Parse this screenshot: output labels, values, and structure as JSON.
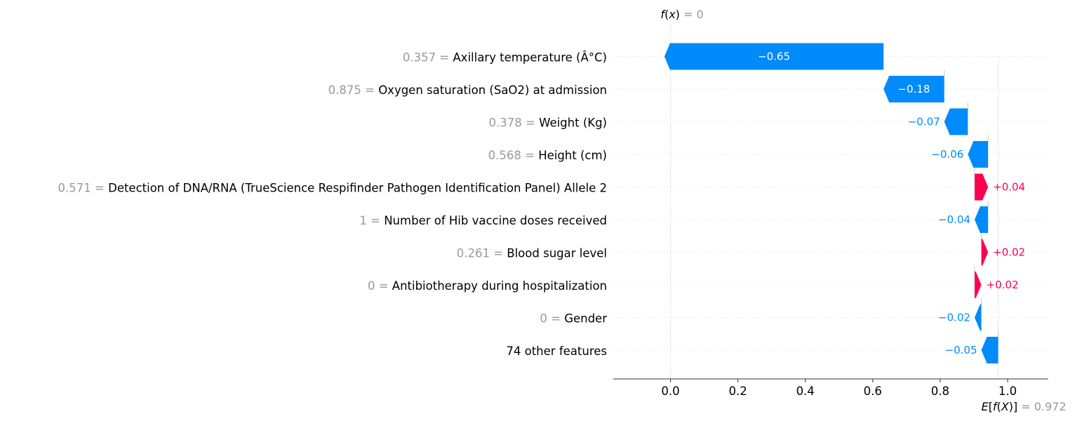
{
  "chart_data": {
    "type": "waterfall",
    "fx_label": "f(x)",
    "fx_value": "0",
    "base_label": "E[f(X)]",
    "base_value": "0.972",
    "base": 0.972,
    "final": 0,
    "xlim": [
      -0.17,
      1.12
    ],
    "xticks": [
      0.0,
      0.2,
      0.4,
      0.6,
      0.8,
      1.0
    ],
    "xtick_labels": [
      "0.0",
      "0.2",
      "0.4",
      "0.6",
      "0.8",
      "1.0"
    ],
    "features": [
      {
        "value": "0.357",
        "name": "Axillary temperature (Â°C)",
        "contribution": -0.65,
        "label": "−0.65"
      },
      {
        "value": "0.875",
        "name": "Oxygen saturation (SaO2) at admission",
        "contribution": -0.18,
        "label": "−0.18"
      },
      {
        "value": "0.378",
        "name": "Weight (Kg)",
        "contribution": -0.07,
        "label": "−0.07"
      },
      {
        "value": "0.568",
        "name": "Height (cm)",
        "contribution": -0.06,
        "label": "−0.06"
      },
      {
        "value": "0.571",
        "name": "Detection of DNA/RNA (TrueScience Respifinder Pathogen Identification Panel) Allele 2",
        "contribution": 0.04,
        "label": "+0.04"
      },
      {
        "value": "1",
        "name": "Number of Hib vaccine doses received",
        "contribution": -0.04,
        "label": "−0.04"
      },
      {
        "value": "0.261",
        "name": "Blood sugar level",
        "contribution": 0.02,
        "label": "+0.02"
      },
      {
        "value": "0",
        "name": "Antibiotherapy during hospitalization",
        "contribution": 0.02,
        "label": "+0.02"
      },
      {
        "value": "0",
        "name": "Gender",
        "contribution": -0.02,
        "label": "−0.02"
      },
      {
        "value": "",
        "name": "74 other features",
        "contribution": -0.05,
        "label": "−0.05"
      }
    ],
    "colors": {
      "negative": "#008bfb",
      "positive": "#ff0051",
      "grid": "#cccccc",
      "muted": "#999999"
    }
  }
}
